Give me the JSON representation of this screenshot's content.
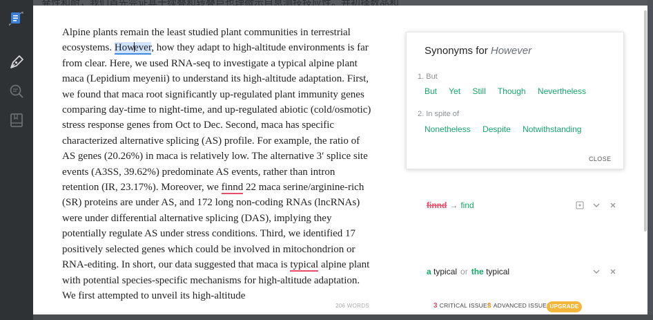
{
  "backdrop": {
    "text": "発性和耐，我们首先完证其十续叠和转叠巨也理微示自息测技技应性。并初择数品和"
  },
  "sidebar": {
    "icons": [
      "document-icon",
      "pen-icon",
      "search-icon",
      "book-icon"
    ]
  },
  "document": {
    "paragraph_before_word": "Alpine plants remain the least studied plant communities in terrestrial ecosystems. ",
    "highlight_word": {
      "part1": "How",
      "part2": "ever"
    },
    "paragraph_middle": ", how they adapt to high-altitude environments is far from clear. Here, we used RNA-seq to investigate a typical alpine plant maca (Lepidium meyenii) to understand its high-altitude adaptation. First, we found that maca root significantly up-regulated plant immunity genes comparing day-time to night-time, and up-regulated abiotic (cold/osmotic) stress response genes from Oct to Dec. Second, maca has specific characterized alternative splicing (AS) profile. For example, the ratio of AS genes (20.26%) in maca is relatively low. The alternative 3′ splice site events (A3SS, 39.62%) predominate AS events, rather than intron retention (IR, 23.17%). Moreover, we ",
    "error_word_1": "finnd",
    "paragraph_after_error_1": " 22 maca serine/arginine-rich (SR) proteins are under AS, and 172 long non-coding RNAs (lncRNAs) were under differential alternative splicing (DAS), implying they potentially regulate AS under stress conditions. Third, we identified 17 positively selected genes which could be involved in mitochondrion or RNA-editing. In short, our data suggested that maca is ",
    "error_word_2": "typical",
    "paragraph_end": " alpine plant with potential species-specific mechanisms for high-altitude adaptation. We first attempted to unveil its high-altitude"
  },
  "synonyms": {
    "title_prefix": "Synonyms for ",
    "word": "However",
    "groups": [
      {
        "label": "1. But",
        "items": [
          "But",
          "Yet",
          "Still",
          "Though",
          "Nevertheless"
        ]
      },
      {
        "label": "2. In spite of",
        "items": [
          "Nonetheless",
          "Despite",
          "Notwithstanding"
        ]
      }
    ],
    "close_label": "CLOSE"
  },
  "suggestions": [
    {
      "wrong": "finnd",
      "arrow": "→",
      "fix": "find"
    },
    {
      "opt1_article": "a",
      "opt1_word": "typical",
      "or": "or",
      "opt2_article": "the",
      "opt2_word": "typical"
    }
  ],
  "status": {
    "words": "206 WORDS",
    "critical_count": "3",
    "critical_label": "CRITICAL ISSUES",
    "advanced_count": "3",
    "advanced_label": "ADVANCED ISSUES",
    "upgrade_label": "UPGRADE"
  },
  "colors": {
    "accent_green": "#15a66a",
    "error_red": "#e84c66",
    "critical_red": "#e84c66",
    "advanced_orange": "#f5a623",
    "upgrade_yellow": "#f5b73b",
    "highlight_blue": "#cfe3ff"
  }
}
